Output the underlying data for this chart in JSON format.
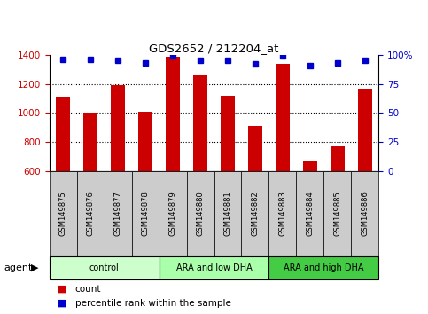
{
  "title": "GDS2652 / 212204_at",
  "samples": [
    "GSM149875",
    "GSM149876",
    "GSM149877",
    "GSM149878",
    "GSM149879",
    "GSM149880",
    "GSM149881",
    "GSM149882",
    "GSM149883",
    "GSM149884",
    "GSM149885",
    "GSM149886"
  ],
  "counts": [
    1115,
    1005,
    1195,
    1010,
    1385,
    1260,
    1120,
    910,
    1340,
    665,
    770,
    1170
  ],
  "percentile_ranks": [
    96,
    96,
    95,
    93,
    99,
    95,
    95,
    92,
    99,
    91,
    93,
    95
  ],
  "ylim_left": [
    600,
    1400
  ],
  "ylim_right": [
    0,
    100
  ],
  "yticks_left": [
    600,
    800,
    1000,
    1200,
    1400
  ],
  "yticks_right": [
    0,
    25,
    50,
    75,
    100
  ],
  "groups": [
    {
      "label": "control",
      "start": 0,
      "end": 4,
      "color": "#ccffcc"
    },
    {
      "label": "ARA and low DHA",
      "start": 4,
      "end": 8,
      "color": "#aaffaa"
    },
    {
      "label": "ARA and high DHA",
      "start": 8,
      "end": 12,
      "color": "#44cc44"
    }
  ],
  "bar_color": "#cc0000",
  "dot_color": "#0000cc",
  "tick_label_color_left": "#cc0000",
  "tick_label_color_right": "#0000cc",
  "bar_width": 0.5,
  "xlabel_area_color": "#cccccc",
  "agent_label": "agent"
}
